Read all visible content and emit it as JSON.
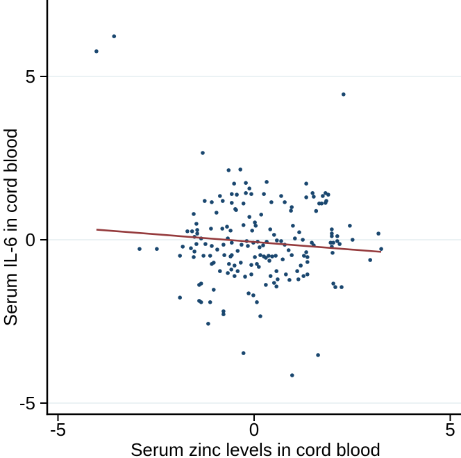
{
  "chart_data": {
    "type": "scatter",
    "title": "",
    "xlabel": "Serum zinc levels in cord blood",
    "ylabel": "Serum IL-6 in cord blood",
    "xlim": [
      -5.27,
      5.27
    ],
    "ylim": [
      -5.34,
      7.34
    ],
    "x_ticks": {
      "values": [
        -5,
        0,
        5
      ],
      "labels": [
        "-5",
        "0",
        "5"
      ]
    },
    "y_ticks": {
      "values": [
        5,
        0,
        -5
      ],
      "labels": [
        "5",
        "0",
        "-5"
      ]
    },
    "grid": {
      "horizontal": true,
      "vertical": false
    },
    "legend": "none",
    "marker_radius": 2.8,
    "colors": {
      "marker": "#1a476f",
      "fit_line": "#953b3d",
      "grid": "#e8f0f3",
      "axis": "#000000",
      "background": "#ffffff"
    },
    "fit_line": {
      "x1": -4.02,
      "y1": 0.31,
      "x2": 3.24,
      "y2": -0.37
    },
    "points": [
      [
        -4.02,
        5.77
      ],
      [
        -3.57,
        6.23
      ],
      [
        -1.31,
        2.66
      ],
      [
        2.28,
        4.45
      ],
      [
        -0.65,
        2.13
      ],
      [
        -0.35,
        2.15
      ],
      [
        -0.51,
        1.72
      ],
      [
        -0.21,
        1.74
      ],
      [
        0.32,
        1.77
      ],
      [
        -0.12,
        1.57
      ],
      [
        -0.57,
        1.4
      ],
      [
        -0.44,
        1.38
      ],
      [
        -0.21,
        1.43
      ],
      [
        -0.07,
        1.4
      ],
      [
        0.25,
        1.4
      ],
      [
        1.33,
        1.72
      ],
      [
        -0.87,
        1.34
      ],
      [
        -1.26,
        1.19
      ],
      [
        -1.08,
        1.15
      ],
      [
        -0.8,
        1.19
      ],
      [
        -0.57,
        1.13
      ],
      [
        0.44,
        1.15
      ],
      [
        0.69,
        1.34
      ],
      [
        0.78,
        1.15
      ],
      [
        1.33,
        1.3
      ],
      [
        1.49,
        1.43
      ],
      [
        1.52,
        1.32
      ],
      [
        1.75,
        1.34
      ],
      [
        0.96,
        1.0
      ],
      [
        1.66,
        1.11
      ],
      [
        1.82,
        1.13
      ],
      [
        -0.48,
        0.94
      ],
      [
        -0.27,
        1.11
      ],
      [
        1.58,
        0.88
      ],
      [
        -0.96,
        0.83
      ],
      [
        1.82,
        1.43
      ],
      [
        1.89,
        1.38
      ],
      [
        1.84,
        1.19
      ],
      [
        1.72,
        1.11
      ],
      [
        -0.46,
        0.91
      ],
      [
        -0.12,
        0.7
      ],
      [
        0.18,
        0.77
      ],
      [
        0.94,
        0.89
      ],
      [
        -0.27,
        0.45
      ],
      [
        0.02,
        0.53
      ],
      [
        0.04,
        0.43
      ],
      [
        -0.05,
        0.28
      ],
      [
        -0.69,
        0.4
      ],
      [
        -0.6,
        0.28
      ],
      [
        -0.81,
        0.34
      ],
      [
        -1.1,
        0.34
      ],
      [
        -1.35,
        0.04
      ],
      [
        -1.52,
        0.09
      ],
      [
        -1.24,
        -0.13
      ],
      [
        -1.08,
        -0.19
      ],
      [
        -0.94,
        -0.3
      ],
      [
        -0.78,
        -0.15
      ],
      [
        -0.67,
        0.04
      ],
      [
        -0.57,
        -0.09
      ],
      [
        -0.42,
        -0.34
      ],
      [
        -0.32,
        -0.15
      ],
      [
        -0.19,
        -0.04
      ],
      [
        -0.16,
        -0.19
      ],
      [
        -0.02,
        -0.09
      ],
      [
        0.09,
        -0.06
      ],
      [
        0.14,
        -0.23
      ],
      [
        0.23,
        -0.17
      ],
      [
        0.32,
        -0.06
      ],
      [
        0.41,
        0.32
      ],
      [
        0.51,
        0.15
      ],
      [
        0.58,
        -0.02
      ],
      [
        0.69,
        -0.04
      ],
      [
        0.78,
        -0.15
      ],
      [
        0.88,
        -0.32
      ],
      [
        0.99,
        0.43
      ],
      [
        1.04,
        0.04
      ],
      [
        1.15,
        0.23
      ],
      [
        1.24,
        0.0
      ],
      [
        1.33,
        -0.38
      ],
      [
        1.47,
        -0.09
      ],
      [
        1.52,
        -0.17
      ],
      [
        1.98,
        0.19
      ],
      [
        1.98,
        0.32
      ],
      [
        1.98,
        -0.21
      ],
      [
        -1.54,
        0.79
      ],
      [
        -1.47,
        0.49
      ],
      [
        -1.45,
        0.3
      ],
      [
        -1.58,
        0.26
      ],
      [
        -1.7,
        0.26
      ],
      [
        -1.45,
        0.19
      ],
      [
        -2.92,
        -0.28
      ],
      [
        -2.48,
        -0.28
      ],
      [
        -1.82,
        -0.21
      ],
      [
        -1.61,
        -0.26
      ],
      [
        -1.47,
        -0.13
      ],
      [
        -1.52,
        -0.36
      ],
      [
        -1.89,
        -0.49
      ],
      [
        -1.54,
        -0.53
      ],
      [
        -1.4,
        -1.38
      ],
      [
        -1.89,
        -1.77
      ],
      [
        -1.4,
        -1.87
      ],
      [
        -1.29,
        -0.49
      ],
      [
        -1.12,
        -0.49
      ],
      [
        -0.76,
        -0.47
      ],
      [
        -0.6,
        -0.51
      ],
      [
        -0.57,
        -0.47
      ],
      [
        0.02,
        -0.53
      ],
      [
        0.16,
        -0.47
      ],
      [
        0.25,
        -0.51
      ],
      [
        0.3,
        -0.55
      ],
      [
        0.37,
        -0.49
      ],
      [
        0.46,
        -0.51
      ],
      [
        0.55,
        -0.49
      ],
      [
        0.73,
        -0.6
      ],
      [
        0.96,
        -0.47
      ],
      [
        1.27,
        -0.49
      ],
      [
        1.36,
        -0.53
      ],
      [
        -1.08,
        -0.74
      ],
      [
        -1.03,
        -0.7
      ],
      [
        -0.64,
        -0.74
      ],
      [
        -0.5,
        -0.79
      ],
      [
        -0.34,
        -0.7
      ],
      [
        -0.07,
        -0.77
      ],
      [
        0.07,
        -0.74
      ],
      [
        0.12,
        -0.83
      ],
      [
        0.39,
        -0.64
      ],
      [
        1.19,
        -0.79
      ],
      [
        1.36,
        -0.68
      ],
      [
        -0.87,
        -0.96
      ],
      [
        -0.67,
        -1.02
      ],
      [
        -0.58,
        -0.91
      ],
      [
        -0.5,
        -1.11
      ],
      [
        -0.42,
        -0.96
      ],
      [
        -0.23,
        -1.13
      ],
      [
        -0.07,
        -1.06
      ],
      [
        0.42,
        -1.11
      ],
      [
        0.57,
        -0.96
      ],
      [
        0.6,
        -1.21
      ],
      [
        0.81,
        -1.06
      ],
      [
        0.9,
        -1.23
      ],
      [
        1.1,
        -0.96
      ],
      [
        1.13,
        -1.21
      ],
      [
        1.26,
        -1.11
      ],
      [
        1.36,
        -1.06
      ],
      [
        -1.35,
        -1.34
      ],
      [
        -1.03,
        -1.53
      ],
      [
        0.3,
        -1.38
      ],
      [
        0.51,
        -1.32
      ],
      [
        0.57,
        -1.43
      ],
      [
        -0.14,
        -1.64
      ],
      [
        -0.02,
        -1.7
      ],
      [
        -1.35,
        -1.91
      ],
      [
        -1.12,
        -1.91
      ],
      [
        0.07,
        -1.91
      ],
      [
        2.44,
        0.43
      ],
      [
        1.98,
        0.11
      ],
      [
        2.12,
        0.11
      ],
      [
        1.95,
        -0.09
      ],
      [
        2.02,
        -0.09
      ],
      [
        2.12,
        -0.04
      ],
      [
        2.18,
        -0.13
      ],
      [
        2.51,
        0.0
      ],
      [
        3.17,
        0.19
      ],
      [
        3.24,
        -0.28
      ],
      [
        2.0,
        -0.4
      ],
      [
        2.96,
        -0.62
      ],
      [
        2.07,
        -1.45
      ],
      [
        2.02,
        -1.34
      ],
      [
        2.23,
        -1.45
      ],
      [
        -0.78,
        -2.19
      ],
      [
        -0.78,
        -2.28
      ],
      [
        0.16,
        -2.34
      ],
      [
        -1.17,
        -2.57
      ],
      [
        -0.27,
        -3.47
      ],
      [
        1.63,
        -3.53
      ],
      [
        0.97,
        -4.15
      ]
    ]
  }
}
